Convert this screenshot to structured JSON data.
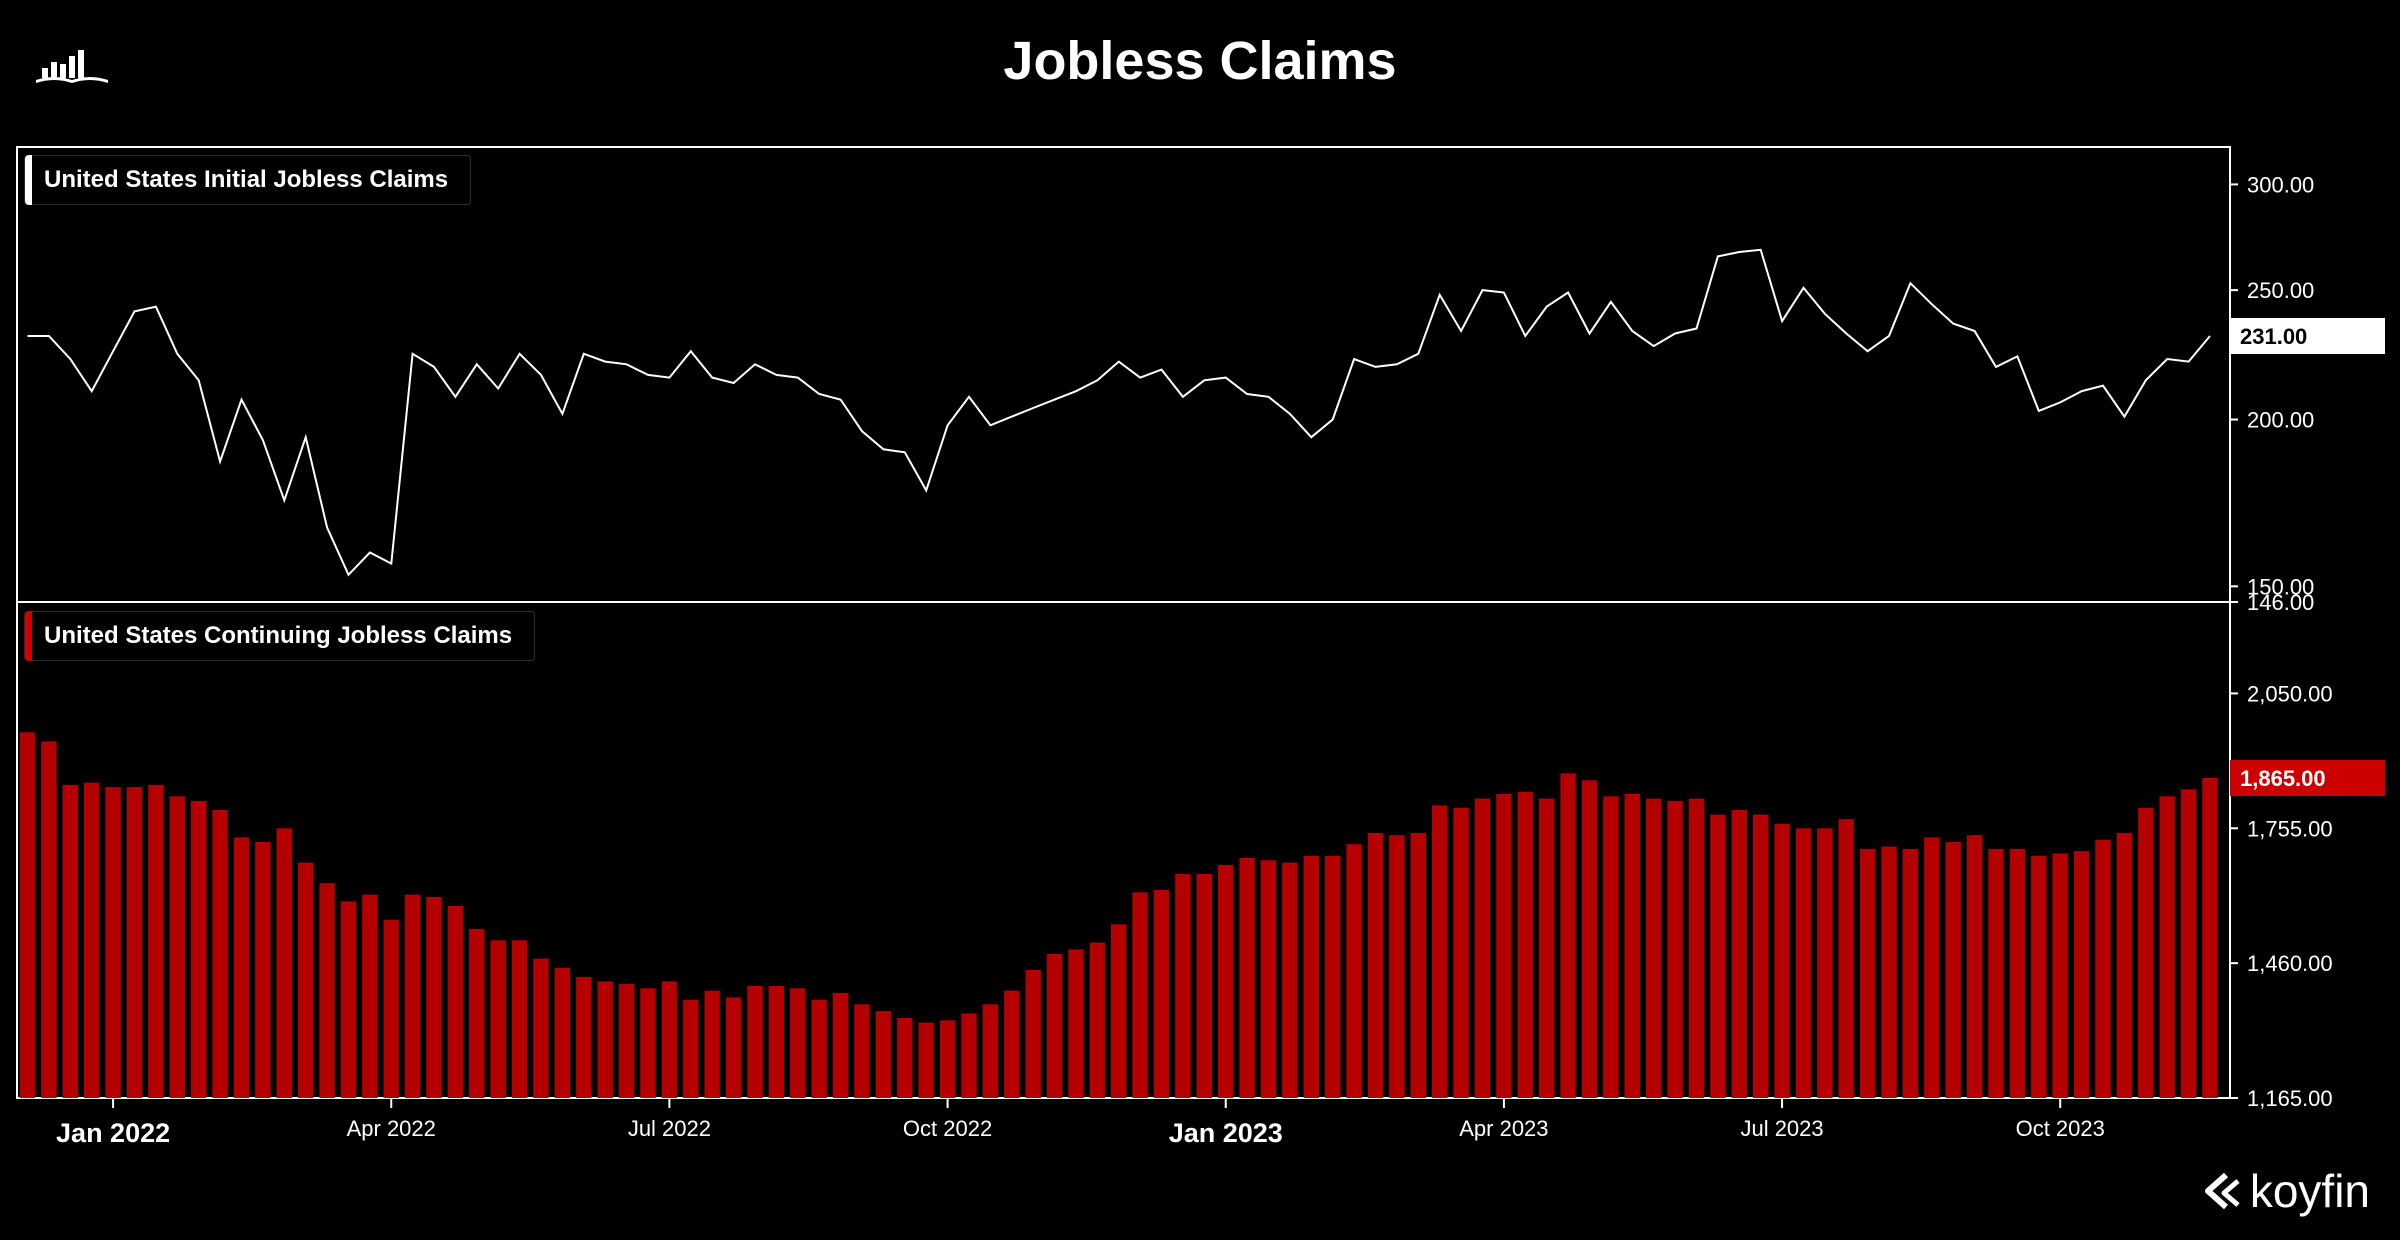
{
  "header": {
    "title": "Jobless Claims"
  },
  "brand": {
    "name": "koyfin"
  },
  "icons": {
    "logo": "chart-book-logo-icon",
    "brand": "koyfin-logo-icon"
  },
  "colors": {
    "background": "#000000",
    "initial_line": "#ffffff",
    "continuing_bar": "#b40000",
    "continuing_badge": "#cc0000"
  },
  "chart_data": [
    {
      "type": "line",
      "panel": "top",
      "legend_label": "United States Initial Jobless Claims",
      "yticks": [
        "300.00",
        "250.00",
        "200.00",
        "150.00",
        "146.00"
      ],
      "ytick_values": [
        300,
        250,
        200,
        150,
        146
      ],
      "ylim": [
        146,
        320
      ],
      "last_value_label": "231.00",
      "last_value": 231,
      "values": [
        231,
        231,
        222,
        210,
        225,
        241,
        243,
        224,
        214,
        186,
        207,
        193,
        174,
        194,
        166,
        153,
        159,
        156,
        224,
        219,
        208,
        220,
        211,
        224,
        216,
        202,
        224,
        221,
        220,
        216,
        215,
        225,
        215,
        213,
        220,
        216,
        215,
        209,
        207,
        196,
        190,
        189,
        177,
        198,
        208,
        198,
        201,
        204,
        207,
        210,
        214,
        221,
        215,
        218,
        208,
        214,
        215,
        209,
        208,
        202,
        194,
        200,
        222,
        219,
        220,
        224,
        248,
        233,
        250,
        249,
        231,
        243,
        249,
        232,
        245,
        233,
        227,
        232,
        234,
        265,
        267,
        268,
        237,
        251,
        240,
        232,
        225,
        231,
        253,
        244,
        236,
        233,
        219,
        223,
        203,
        206,
        210,
        212,
        201,
        214,
        222,
        221,
        231
      ]
    },
    {
      "type": "bar",
      "panel": "bottom",
      "legend_label": "United States Continuing Jobless Claims",
      "yticks": [
        "2,050.00",
        "1,755.00",
        "1,460.00",
        "1,165.00"
      ],
      "ytick_values": [
        2050,
        1755,
        1460,
        1165
      ],
      "ylim": [
        1165,
        2250
      ],
      "last_value_label": "1,865.00",
      "last_value": 1865,
      "values": [
        1965,
        1945,
        1850,
        1855,
        1845,
        1845,
        1850,
        1825,
        1815,
        1795,
        1735,
        1725,
        1755,
        1680,
        1635,
        1595,
        1610,
        1555,
        1610,
        1605,
        1585,
        1535,
        1510,
        1510,
        1470,
        1450,
        1430,
        1420,
        1415,
        1405,
        1420,
        1380,
        1400,
        1385,
        1410,
        1410,
        1405,
        1380,
        1395,
        1370,
        1355,
        1340,
        1330,
        1335,
        1350,
        1370,
        1400,
        1445,
        1480,
        1490,
        1505,
        1545,
        1615,
        1620,
        1655,
        1655,
        1675,
        1690,
        1685,
        1680,
        1695,
        1695,
        1720,
        1745,
        1740,
        1745,
        1805,
        1800,
        1820,
        1830,
        1835,
        1820,
        1875,
        1860,
        1825,
        1830,
        1820,
        1815,
        1820,
        1785,
        1795,
        1785,
        1765,
        1755,
        1755,
        1775,
        1710,
        1715,
        1710,
        1735,
        1725,
        1740,
        1710,
        1710,
        1695,
        1700,
        1705,
        1730,
        1745,
        1800,
        1825,
        1840,
        1865
      ]
    }
  ],
  "x_axis": {
    "labels": [
      {
        "text": "Jan 2022",
        "index": 4,
        "major": true
      },
      {
        "text": "Apr 2022",
        "index": 17,
        "major": false
      },
      {
        "text": "Jul 2022",
        "index": 30,
        "major": false
      },
      {
        "text": "Oct 2022",
        "index": 43,
        "major": false
      },
      {
        "text": "Jan 2023",
        "index": 56,
        "major": true
      },
      {
        "text": "Apr 2023",
        "index": 69,
        "major": false
      },
      {
        "text": "Jul 2023",
        "index": 82,
        "major": false
      },
      {
        "text": "Oct 2023",
        "index": 95,
        "major": false
      }
    ]
  }
}
